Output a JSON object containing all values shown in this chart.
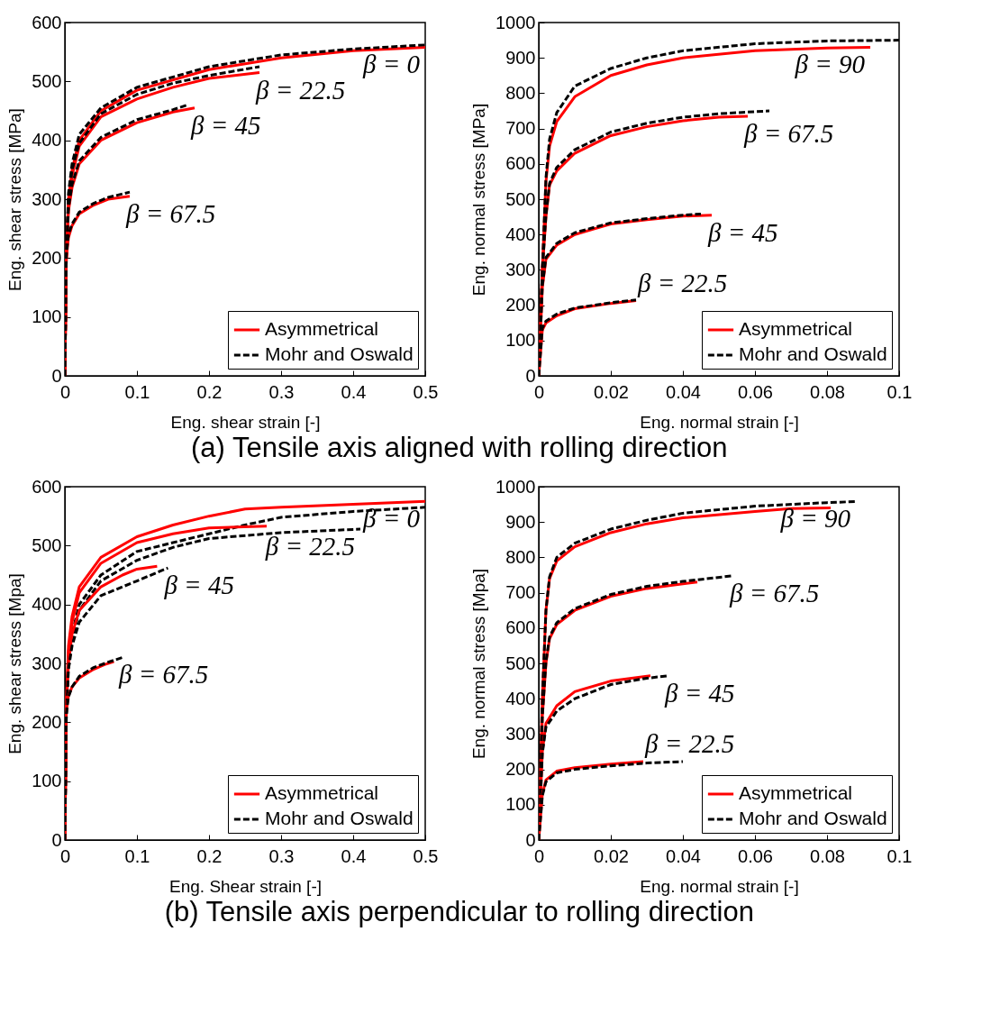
{
  "chart_data": [
    {
      "type": "line",
      "xlabel": "Eng. shear strain [-]",
      "ylabel": "Eng. shear stress [MPa]",
      "xlim": [
        0,
        0.5
      ],
      "ylim": [
        0,
        600
      ],
      "xticks": [
        0,
        0.1,
        0.2,
        0.3,
        0.4,
        0.5
      ],
      "yticks": [
        0,
        100,
        200,
        300,
        400,
        500,
        600
      ],
      "legend": "bottom right",
      "annotations": [
        "(a) Tensile axis aligned with rolling direction",
        {
          "text": "β = 0",
          "x": 0.5,
          "y": 558
        },
        {
          "text": "β = 22.5",
          "x": 0.27,
          "y": 515
        },
        {
          "text": "β = 45",
          "x": 0.18,
          "y": 455
        },
        {
          "text": "β = 67.5",
          "x": 0.09,
          "y": 305
        }
      ],
      "series": [
        {
          "name": "Asymmetrical",
          "color": "#ff0000",
          "line_style": "solid",
          "x": [
            0,
            0.002,
            0.005,
            0.01,
            0.02,
            0.05,
            0.1,
            0.2,
            0.3,
            0.4,
            0.5
          ],
          "values": [
            0,
            200,
            300,
            350,
            400,
            450,
            485,
            520,
            540,
            552,
            558
          ]
        },
        {
          "name": "Mohr and Oswald",
          "color": "#000000",
          "line_style": "dashed",
          "x": [
            0,
            0.002,
            0.005,
            0.01,
            0.02,
            0.05,
            0.1,
            0.2,
            0.3,
            0.4,
            0.5
          ],
          "values": [
            0,
            210,
            310,
            360,
            410,
            455,
            490,
            525,
            545,
            555,
            562
          ]
        },
        {
          "name": "Asymmetrical",
          "color": "#ff0000",
          "line_style": "solid",
          "x": [
            0,
            0.002,
            0.005,
            0.01,
            0.02,
            0.05,
            0.1,
            0.15,
            0.2,
            0.27
          ],
          "values": [
            0,
            200,
            290,
            340,
            390,
            440,
            470,
            490,
            505,
            515
          ]
        },
        {
          "name": "Mohr and Oswald",
          "color": "#000000",
          "line_style": "dashed",
          "x": [
            0,
            0.002,
            0.005,
            0.01,
            0.02,
            0.05,
            0.1,
            0.15,
            0.2,
            0.27
          ],
          "values": [
            0,
            205,
            300,
            350,
            395,
            445,
            478,
            497,
            510,
            525
          ]
        },
        {
          "name": "Asymmetrical",
          "color": "#ff0000",
          "line_style": "solid",
          "x": [
            0,
            0.002,
            0.005,
            0.01,
            0.02,
            0.05,
            0.1,
            0.15,
            0.18
          ],
          "values": [
            0,
            200,
            280,
            320,
            360,
            400,
            430,
            448,
            455
          ]
        },
        {
          "name": "Mohr and Oswald",
          "color": "#000000",
          "line_style": "dashed",
          "x": [
            0,
            0.002,
            0.005,
            0.01,
            0.02,
            0.05,
            0.1,
            0.15,
            0.17
          ],
          "values": [
            0,
            205,
            285,
            325,
            365,
            405,
            435,
            452,
            460
          ]
        },
        {
          "name": "Asymmetrical",
          "color": "#ff0000",
          "line_style": "solid",
          "x": [
            0,
            0.002,
            0.005,
            0.01,
            0.02,
            0.04,
            0.06,
            0.09
          ],
          "values": [
            0,
            200,
            235,
            255,
            275,
            290,
            300,
            305
          ]
        },
        {
          "name": "Mohr and Oswald",
          "color": "#000000",
          "line_style": "dashed",
          "x": [
            0,
            0.002,
            0.005,
            0.01,
            0.02,
            0.04,
            0.06,
            0.09
          ],
          "values": [
            0,
            205,
            240,
            258,
            278,
            293,
            303,
            312
          ]
        }
      ]
    },
    {
      "type": "line",
      "xlabel": "Eng. normal strain [-]",
      "ylabel": "Eng. normal stress [MPa]",
      "xlim": [
        0,
        0.1
      ],
      "ylim": [
        0,
        1000
      ],
      "xticks": [
        0,
        0.02,
        0.04,
        0.06,
        0.08,
        0.1
      ],
      "yticks": [
        0,
        100,
        200,
        300,
        400,
        500,
        600,
        700,
        800,
        900,
        1000
      ],
      "legend": "bottom right",
      "annotations": [
        {
          "text": "β = 90",
          "x": 0.092,
          "y": 930
        },
        {
          "text": "β = 67.5",
          "x": 0.058,
          "y": 735
        },
        {
          "text": "β = 45",
          "x": 0.048,
          "y": 455
        },
        {
          "text": "β = 22.5",
          "x": 0.027,
          "y": 213
        }
      ],
      "series": [
        {
          "name": "Asymmetrical",
          "color": "#ff0000",
          "line_style": "solid",
          "x": [
            0,
            0.001,
            0.002,
            0.003,
            0.005,
            0.01,
            0.02,
            0.03,
            0.04,
            0.06,
            0.08,
            0.092
          ],
          "values": [
            0,
            300,
            550,
            650,
            720,
            790,
            850,
            880,
            900,
            920,
            928,
            930
          ]
        },
        {
          "name": "Mohr and Oswald",
          "color": "#000000",
          "line_style": "dashed",
          "x": [
            0,
            0.001,
            0.002,
            0.003,
            0.005,
            0.01,
            0.02,
            0.03,
            0.04,
            0.06,
            0.08,
            0.1
          ],
          "values": [
            0,
            300,
            560,
            670,
            745,
            820,
            870,
            900,
            920,
            940,
            948,
            950
          ]
        },
        {
          "name": "Asymmetrical",
          "color": "#ff0000",
          "line_style": "solid",
          "x": [
            0,
            0.001,
            0.002,
            0.003,
            0.005,
            0.01,
            0.02,
            0.03,
            0.04,
            0.05,
            0.058
          ],
          "values": [
            0,
            300,
            450,
            540,
            580,
            630,
            680,
            705,
            722,
            732,
            735
          ]
        },
        {
          "name": "Mohr and Oswald",
          "color": "#000000",
          "line_style": "dashed",
          "x": [
            0,
            0.001,
            0.002,
            0.003,
            0.005,
            0.01,
            0.02,
            0.03,
            0.04,
            0.05,
            0.064
          ],
          "values": [
            0,
            300,
            455,
            545,
            590,
            640,
            690,
            715,
            732,
            742,
            750
          ]
        },
        {
          "name": "Asymmetrical",
          "color": "#ff0000",
          "line_style": "solid",
          "x": [
            0,
            0.001,
            0.002,
            0.005,
            0.01,
            0.02,
            0.03,
            0.04,
            0.048
          ],
          "values": [
            0,
            250,
            330,
            370,
            400,
            430,
            442,
            452,
            455
          ]
        },
        {
          "name": "Mohr and Oswald",
          "color": "#000000",
          "line_style": "dashed",
          "x": [
            0,
            0.001,
            0.002,
            0.005,
            0.01,
            0.02,
            0.03,
            0.04,
            0.045
          ],
          "values": [
            0,
            255,
            335,
            375,
            405,
            433,
            445,
            455,
            458
          ]
        },
        {
          "name": "Asymmetrical",
          "color": "#ff0000",
          "line_style": "solid",
          "x": [
            0,
            0.001,
            0.002,
            0.005,
            0.01,
            0.02,
            0.027
          ],
          "values": [
            0,
            130,
            150,
            170,
            190,
            205,
            213
          ]
        },
        {
          "name": "Mohr and Oswald",
          "color": "#000000",
          "line_style": "dashed",
          "x": [
            0,
            0.001,
            0.002,
            0.005,
            0.01,
            0.02,
            0.027
          ],
          "values": [
            0,
            135,
            155,
            175,
            192,
            207,
            215
          ]
        }
      ]
    },
    {
      "type": "line",
      "xlabel": "Eng. Shear strain [-]",
      "ylabel": "Eng. shear stress [Mpa]",
      "xlim": [
        0,
        0.5
      ],
      "ylim": [
        0,
        600
      ],
      "xticks": [
        0,
        0.1,
        0.2,
        0.3,
        0.4,
        0.5
      ],
      "yticks": [
        0,
        100,
        200,
        300,
        400,
        500,
        600
      ],
      "legend": "bottom right",
      "annotations": [
        "(b) Tensile axis perpendicular to rolling direction",
        {
          "text": "β = 0",
          "x": 0.5,
          "y": 575
        },
        {
          "text": "β = 22.5",
          "x": 0.41,
          "y": 528
        },
        {
          "text": "β = 45",
          "x": 0.143,
          "y": 462
        },
        {
          "text": "β = 67.5",
          "x": 0.08,
          "y": 310
        }
      ],
      "series": [
        {
          "name": "Asymmetrical",
          "color": "#ff0000",
          "line_style": "solid",
          "x": [
            0,
            0.002,
            0.005,
            0.01,
            0.02,
            0.05,
            0.1,
            0.15,
            0.2,
            0.25,
            0.3,
            0.4,
            0.5
          ],
          "values": [
            0,
            230,
            330,
            380,
            430,
            480,
            515,
            535,
            550,
            562,
            565,
            570,
            575
          ]
        },
        {
          "name": "Mohr and Oswald",
          "color": "#000000",
          "line_style": "dashed",
          "x": [
            0,
            0.002,
            0.005,
            0.01,
            0.02,
            0.05,
            0.1,
            0.2,
            0.25,
            0.3,
            0.4,
            0.5
          ],
          "values": [
            0,
            220,
            310,
            350,
            400,
            450,
            490,
            520,
            535,
            548,
            558,
            565
          ]
        },
        {
          "name": "Asymmetrical",
          "color": "#ff0000",
          "line_style": "solid",
          "x": [
            0,
            0.002,
            0.005,
            0.01,
            0.02,
            0.05,
            0.1,
            0.15,
            0.2,
            0.28
          ],
          "values": [
            0,
            225,
            320,
            370,
            420,
            470,
            505,
            520,
            530,
            533
          ]
        },
        {
          "name": "Mohr and Oswald",
          "color": "#000000",
          "line_style": "dashed",
          "x": [
            0,
            0.002,
            0.005,
            0.01,
            0.02,
            0.05,
            0.1,
            0.15,
            0.2,
            0.3,
            0.41
          ],
          "values": [
            0,
            210,
            300,
            340,
            390,
            440,
            475,
            497,
            512,
            522,
            528
          ]
        },
        {
          "name": "Asymmetrical",
          "color": "#ff0000",
          "line_style": "solid",
          "x": [
            0,
            0.002,
            0.005,
            0.01,
            0.02,
            0.05,
            0.08,
            0.1,
            0.128
          ],
          "values": [
            0,
            220,
            300,
            350,
            390,
            430,
            450,
            460,
            465
          ]
        },
        {
          "name": "Mohr and Oswald",
          "color": "#000000",
          "line_style": "dashed",
          "x": [
            0,
            0.002,
            0.005,
            0.01,
            0.02,
            0.05,
            0.1,
            0.143
          ],
          "values": [
            0,
            210,
            290,
            330,
            370,
            415,
            440,
            462
          ]
        },
        {
          "name": "Asymmetrical",
          "color": "#ff0000",
          "line_style": "solid",
          "x": [
            0,
            0.002,
            0.005,
            0.01,
            0.02,
            0.04,
            0.055,
            0.068
          ],
          "values": [
            0,
            220,
            245,
            260,
            275,
            290,
            298,
            303
          ]
        },
        {
          "name": "Mohr and Oswald",
          "color": "#000000",
          "line_style": "dashed",
          "x": [
            0,
            0.002,
            0.005,
            0.01,
            0.02,
            0.04,
            0.06,
            0.08
          ],
          "values": [
            0,
            215,
            243,
            260,
            278,
            293,
            302,
            310
          ]
        }
      ]
    },
    {
      "type": "line",
      "xlabel": "Eng. normal strain [-]",
      "ylabel": "Eng. normal stress [Mpa]",
      "xlim": [
        0,
        0.1
      ],
      "ylim": [
        0,
        1000
      ],
      "xticks": [
        0,
        0.02,
        0.04,
        0.06,
        0.08,
        0.1
      ],
      "yticks": [
        0,
        100,
        200,
        300,
        400,
        500,
        600,
        700,
        800,
        900,
        1000
      ],
      "legend": "bottom right",
      "annotations": [
        {
          "text": "β = 90",
          "x": 0.088,
          "y": 958
        },
        {
          "text": "β = 67.5",
          "x": 0.054,
          "y": 748
        },
        {
          "text": "β = 45",
          "x": 0.036,
          "y": 465
        },
        {
          "text": "β = 22.5",
          "x": 0.029,
          "y": 222
        }
      ],
      "series": [
        {
          "name": "Asymmetrical",
          "color": "#ff0000",
          "line_style": "solid",
          "x": [
            0,
            0.001,
            0.002,
            0.003,
            0.005,
            0.01,
            0.02,
            0.03,
            0.04,
            0.06,
            0.07,
            0.081
          ],
          "values": [
            0,
            400,
            650,
            740,
            790,
            830,
            870,
            895,
            912,
            930,
            938,
            940
          ]
        },
        {
          "name": "Mohr and Oswald",
          "color": "#000000",
          "line_style": "dashed",
          "x": [
            0,
            0.001,
            0.002,
            0.003,
            0.005,
            0.01,
            0.02,
            0.03,
            0.04,
            0.06,
            0.08,
            0.088
          ],
          "values": [
            0,
            400,
            650,
            745,
            800,
            840,
            880,
            905,
            925,
            945,
            955,
            958
          ]
        },
        {
          "name": "Asymmetrical",
          "color": "#ff0000",
          "line_style": "solid",
          "x": [
            0,
            0.001,
            0.002,
            0.003,
            0.005,
            0.01,
            0.02,
            0.03,
            0.04,
            0.044
          ],
          "values": [
            0,
            350,
            500,
            570,
            610,
            650,
            690,
            712,
            725,
            730
          ]
        },
        {
          "name": "Mohr and Oswald",
          "color": "#000000",
          "line_style": "dashed",
          "x": [
            0,
            0.001,
            0.002,
            0.003,
            0.005,
            0.01,
            0.02,
            0.03,
            0.04,
            0.054
          ],
          "values": [
            0,
            350,
            505,
            575,
            615,
            655,
            695,
            718,
            732,
            748
          ]
        },
        {
          "name": "Asymmetrical",
          "color": "#ff0000",
          "line_style": "solid",
          "x": [
            0,
            0.001,
            0.002,
            0.005,
            0.01,
            0.02,
            0.031
          ],
          "values": [
            0,
            250,
            330,
            380,
            420,
            450,
            465
          ]
        },
        {
          "name": "Mohr and Oswald",
          "color": "#000000",
          "line_style": "dashed",
          "x": [
            0,
            0.001,
            0.002,
            0.005,
            0.01,
            0.02,
            0.03,
            0.036
          ],
          "values": [
            0,
            245,
            320,
            365,
            400,
            440,
            458,
            465
          ]
        },
        {
          "name": "Asymmetrical",
          "color": "#ff0000",
          "line_style": "solid",
          "x": [
            0,
            0.001,
            0.002,
            0.005,
            0.01,
            0.02,
            0.029
          ],
          "values": [
            0,
            130,
            170,
            195,
            205,
            215,
            222
          ]
        },
        {
          "name": "Mohr and Oswald",
          "color": "#000000",
          "line_style": "dashed",
          "x": [
            0,
            0.001,
            0.002,
            0.005,
            0.01,
            0.02,
            0.03,
            0.04
          ],
          "values": [
            0,
            125,
            165,
            190,
            200,
            210,
            218,
            222
          ]
        }
      ]
    }
  ]
}
